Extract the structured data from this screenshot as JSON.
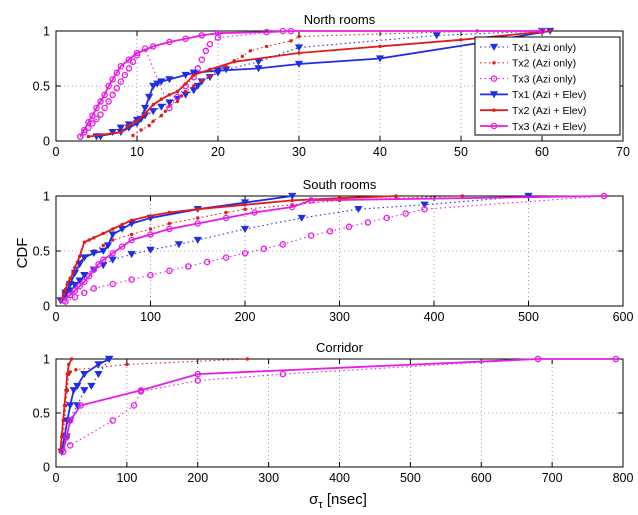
{
  "figure": {
    "ylabel": "CDF",
    "xlabel_main": "σ",
    "xlabel_sub": "τ",
    "xlabel_unit": " [nsec]"
  },
  "series_styles": [
    {
      "name": "Tx1 (Azi only)",
      "color": "#1f2ee6",
      "dash": "dotted",
      "marker": "triangle-down"
    },
    {
      "name": "Tx2 (Azi only)",
      "color": "#e11b1b",
      "dash": "dotted",
      "marker": "dot"
    },
    {
      "name": "Tx3 (Azi only)",
      "color": "#e51ee5",
      "dash": "dotted",
      "marker": "circle"
    },
    {
      "name": "Tx1 (Azi + Elev)",
      "color": "#1f2ee6",
      "dash": "solid",
      "marker": "triangle-down"
    },
    {
      "name": "Tx2 (Azi + Elev)",
      "color": "#e11b1b",
      "dash": "solid",
      "marker": "dot"
    },
    {
      "name": "Tx3 (Azi + Elev)",
      "color": "#e51ee5",
      "dash": "solid",
      "marker": "circle"
    }
  ],
  "chart_data": [
    {
      "type": "line",
      "title": "North rooms",
      "xlim": [
        0,
        70
      ],
      "ylim": [
        0,
        1
      ],
      "xticks": [
        0,
        10,
        20,
        30,
        40,
        50,
        60,
        70
      ],
      "yticks": [
        0,
        0.5,
        1
      ],
      "grid": true,
      "legend": "top-right",
      "series": [
        {
          "name": "Tx1 (Azi only)",
          "x": [
            5.5,
            7,
            8,
            9,
            10,
            11,
            12,
            13,
            14,
            15,
            16,
            17,
            17.5,
            18,
            19,
            20,
            21,
            25,
            30,
            47,
            60
          ],
          "y": [
            0.04,
            0.08,
            0.12,
            0.15,
            0.19,
            0.23,
            0.27,
            0.31,
            0.35,
            0.38,
            0.42,
            0.46,
            0.5,
            0.54,
            0.58,
            0.62,
            0.65,
            0.72,
            0.85,
            0.96,
            1.0
          ]
        },
        {
          "name": "Tx2 (Azi only)",
          "x": [
            9.5,
            10.5,
            11.5,
            12,
            13,
            13.5,
            14,
            15,
            15.5,
            16,
            17,
            18,
            19,
            20,
            21,
            22,
            23,
            24,
            26,
            29,
            30,
            52
          ],
          "y": [
            0.05,
            0.1,
            0.14,
            0.18,
            0.23,
            0.27,
            0.32,
            0.36,
            0.41,
            0.45,
            0.5,
            0.55,
            0.59,
            0.64,
            0.68,
            0.73,
            0.77,
            0.82,
            0.86,
            0.91,
            0.95,
            1.0
          ]
        },
        {
          "name": "Tx3 (Azi only)",
          "x": [
            3,
            3.5,
            4,
            4.5,
            5,
            5.5,
            6,
            6.5,
            7,
            7.5,
            8,
            8.5,
            9,
            9.5,
            10,
            11,
            14,
            15,
            16,
            17,
            17.5,
            18,
            18.5,
            19,
            20,
            28
          ],
          "y": [
            0.04,
            0.08,
            0.12,
            0.16,
            0.2,
            0.24,
            0.3,
            0.36,
            0.42,
            0.48,
            0.54,
            0.6,
            0.66,
            0.72,
            0.78,
            0.84,
            0.3,
            0.4,
            0.5,
            0.58,
            0.66,
            0.74,
            0.82,
            0.88,
            0.94,
            1.0
          ]
        },
        {
          "name": "Tx1 (Azi + Elev)",
          "x": [
            5,
            8,
            9,
            10,
            10.5,
            11,
            11.5,
            12,
            12.5,
            13,
            14,
            16,
            17,
            20,
            25,
            30,
            40,
            53,
            61
          ],
          "y": [
            0.04,
            0.08,
            0.12,
            0.16,
            0.2,
            0.3,
            0.4,
            0.5,
            0.52,
            0.54,
            0.56,
            0.6,
            0.62,
            0.64,
            0.66,
            0.7,
            0.75,
            0.9,
            1.0
          ]
        },
        {
          "name": "Tx2 (Azi + Elev)",
          "x": [
            4,
            8,
            9,
            10,
            11,
            12,
            13,
            14,
            15,
            16,
            17,
            19,
            22,
            30,
            40,
            50,
            61
          ],
          "y": [
            0.04,
            0.08,
            0.14,
            0.18,
            0.25,
            0.33,
            0.38,
            0.42,
            0.45,
            0.52,
            0.6,
            0.65,
            0.72,
            0.8,
            0.86,
            0.92,
            1.0
          ]
        },
        {
          "name": "Tx3 (Azi + Elev)",
          "x": [
            3,
            3.5,
            4,
            4.5,
            5,
            5.5,
            6,
            6.5,
            7,
            7.5,
            8,
            9,
            10,
            12,
            14,
            16,
            18,
            20,
            26,
            29,
            60
          ],
          "y": [
            0.04,
            0.1,
            0.17,
            0.23,
            0.3,
            0.36,
            0.42,
            0.5,
            0.56,
            0.62,
            0.68,
            0.74,
            0.8,
            0.86,
            0.9,
            0.93,
            0.96,
            0.98,
            0.99,
            1.0,
            1.0
          ]
        }
      ]
    },
    {
      "type": "line",
      "title": "South rooms",
      "xlim": [
        0,
        600
      ],
      "ylim": [
        0,
        1
      ],
      "xticks": [
        0,
        100,
        200,
        300,
        400,
        500,
        600
      ],
      "yticks": [
        0,
        0.5,
        1
      ],
      "grid": true,
      "series": [
        {
          "name": "Tx1 (Azi only)",
          "x": [
            5,
            10,
            15,
            20,
            25,
            30,
            40,
            50,
            60,
            80,
            100,
            130,
            150,
            200,
            260,
            320,
            390,
            500
          ],
          "y": [
            0.05,
            0.1,
            0.14,
            0.19,
            0.23,
            0.28,
            0.33,
            0.37,
            0.42,
            0.47,
            0.51,
            0.56,
            0.6,
            0.7,
            0.8,
            0.88,
            0.92,
            1.0
          ]
        },
        {
          "name": "Tx2 (Azi only)",
          "x": [
            5,
            8,
            10,
            12,
            15,
            18,
            20,
            25,
            30,
            40,
            50,
            60,
            80,
            100,
            120,
            150,
            180,
            200,
            250,
            300,
            360,
            430
          ],
          "y": [
            0.05,
            0.1,
            0.15,
            0.2,
            0.25,
            0.3,
            0.35,
            0.4,
            0.45,
            0.5,
            0.55,
            0.6,
            0.65,
            0.7,
            0.75,
            0.8,
            0.85,
            0.88,
            0.92,
            0.96,
            0.98,
            1.0
          ]
        },
        {
          "name": "Tx3 (Azi only)",
          "x": [
            10,
            20,
            30,
            40,
            60,
            80,
            100,
            120,
            140,
            160,
            180,
            200,
            220,
            240,
            270,
            290,
            310,
            330,
            350,
            370,
            390,
            580
          ],
          "y": [
            0.04,
            0.08,
            0.12,
            0.16,
            0.2,
            0.24,
            0.28,
            0.32,
            0.36,
            0.4,
            0.44,
            0.48,
            0.52,
            0.56,
            0.64,
            0.68,
            0.72,
            0.76,
            0.8,
            0.84,
            0.88,
            1.0
          ]
        },
        {
          "name": "Tx1 (Azi + Elev)",
          "x": [
            5,
            10,
            15,
            20,
            25,
            30,
            40,
            50,
            55,
            60,
            70,
            80,
            100,
            150,
            200,
            250
          ],
          "y": [
            0.05,
            0.12,
            0.2,
            0.3,
            0.38,
            0.44,
            0.48,
            0.5,
            0.55,
            0.65,
            0.7,
            0.75,
            0.8,
            0.88,
            0.94,
            1.0
          ]
        },
        {
          "name": "Tx2 (Azi + Elev)",
          "x": [
            5,
            8,
            10,
            12,
            15,
            18,
            20,
            25,
            30,
            35,
            40,
            50,
            60,
            70,
            80,
            100,
            120,
            150,
            200,
            250,
            300,
            360
          ],
          "y": [
            0.05,
            0.1,
            0.15,
            0.2,
            0.25,
            0.3,
            0.35,
            0.45,
            0.58,
            0.6,
            0.62,
            0.66,
            0.7,
            0.74,
            0.78,
            0.82,
            0.85,
            0.88,
            0.92,
            0.96,
            0.98,
            1.0
          ]
        },
        {
          "name": "Tx3 (Azi + Elev)",
          "x": [
            8,
            15,
            20,
            25,
            30,
            35,
            40,
            45,
            50,
            60,
            70,
            80,
            100,
            120,
            150,
            180,
            210,
            250,
            270,
            580
          ],
          "y": [
            0.05,
            0.1,
            0.14,
            0.18,
            0.22,
            0.27,
            0.33,
            0.38,
            0.42,
            0.48,
            0.54,
            0.6,
            0.65,
            0.7,
            0.75,
            0.8,
            0.85,
            0.9,
            0.96,
            1.0
          ]
        }
      ]
    },
    {
      "type": "line",
      "title": "Corridor",
      "xlim": [
        0,
        800
      ],
      "ylim": [
        0,
        1
      ],
      "xticks": [
        0,
        100,
        200,
        300,
        400,
        500,
        600,
        700,
        800
      ],
      "yticks": [
        0,
        0.5,
        1
      ],
      "grid": true,
      "series": [
        {
          "name": "Tx1 (Azi only)",
          "x": [
            8,
            15,
            20,
            30,
            40,
            50,
            60,
            75
          ],
          "y": [
            0.14,
            0.28,
            0.43,
            0.57,
            0.71,
            0.75,
            0.86,
            1.0
          ]
        },
        {
          "name": "Tx2 (Azi only)",
          "x": [
            8,
            10,
            12,
            14,
            16,
            18,
            20,
            28,
            100,
            270
          ],
          "y": [
            0.14,
            0.28,
            0.43,
            0.57,
            0.71,
            0.86,
            0.88,
            0.9,
            0.95,
            1.0
          ]
        },
        {
          "name": "Tx3 (Azi only)",
          "x": [
            10,
            15,
            20,
            80,
            110,
            120,
            200,
            320,
            680,
            790
          ],
          "y": [
            0.14,
            0.28,
            0.2,
            0.43,
            0.57,
            0.7,
            0.8,
            0.86,
            1.0,
            1.0
          ]
        },
        {
          "name": "Tx1 (Azi + Elev)",
          "x": [
            8,
            12,
            16,
            20,
            25,
            30,
            40,
            60,
            75
          ],
          "y": [
            0.14,
            0.28,
            0.43,
            0.57,
            0.71,
            0.75,
            0.86,
            0.95,
            1.0
          ]
        },
        {
          "name": "Tx2 (Azi + Elev)",
          "x": [
            6,
            8,
            10,
            12,
            14,
            16,
            18,
            22
          ],
          "y": [
            0.14,
            0.28,
            0.43,
            0.57,
            0.71,
            0.86,
            0.95,
            1.0
          ]
        },
        {
          "name": "Tx3 (Azi + Elev)",
          "x": [
            10,
            15,
            20,
            35,
            120,
            200,
            680,
            790
          ],
          "y": [
            0.14,
            0.28,
            0.43,
            0.57,
            0.71,
            0.86,
            1.0,
            1.0
          ]
        }
      ]
    }
  ]
}
